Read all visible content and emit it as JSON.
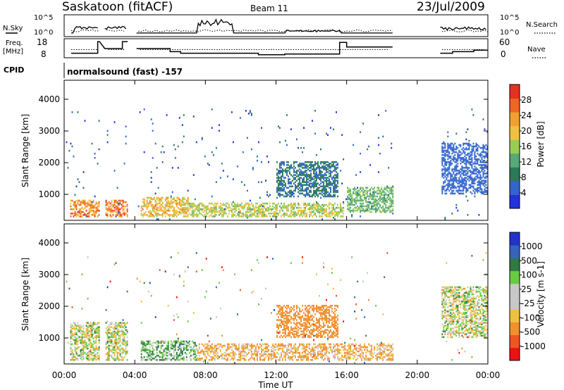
{
  "header": {
    "station": "Saskatoon (fitACF)",
    "beam": "Beam 11",
    "date": "23/Jul/2009"
  },
  "nsky_panel": {
    "left_label": "N.Sky",
    "right_label": "N.Search",
    "left_ticks": [
      "10^5",
      "10^0"
    ],
    "right_ticks": [
      "10^5",
      "10^0"
    ]
  },
  "freq_panel": {
    "left_label_1": "Freq.",
    "left_label_2": "[MHz]",
    "right_label": "Nave",
    "left_ticks": [
      "18",
      "8"
    ],
    "right_ticks": [
      "60",
      "0"
    ]
  },
  "cpid": {
    "label": "CPID",
    "program": "normalsound (fast) -157"
  },
  "colors": {
    "power_scale": [
      "#2233dd",
      "#3366cc",
      "#2a7a5a",
      "#55aa77",
      "#99cc55",
      "#f2c040",
      "#f0a030",
      "#ee6622",
      "#e83020"
    ],
    "velocity_scale": [
      "#ee1111",
      "#ee5522",
      "#f09030",
      "#f2c040",
      "#c8c8c8",
      "#c8c8c8",
      "#66cc44",
      "#2e7a44",
      "#3366bb",
      "#2233cc"
    ]
  },
  "chart_data": [
    {
      "type": "heatmap",
      "name": "power",
      "ylabel": "Slant Range [km]",
      "colorbar_label": "Power [dB]",
      "colorbar_ticks": [
        "28",
        "24",
        "20",
        "16",
        "12",
        "8",
        "4"
      ],
      "y_ticks": [
        "4000",
        "3000",
        "2000",
        "1000"
      ],
      "ylim": [
        180,
        4600
      ],
      "xlim_hours": [
        0,
        24
      ],
      "data_gaps_hours": [
        [
          2.0,
          2.3
        ],
        [
          3.6,
          4.1
        ],
        [
          18.6,
          21.3
        ]
      ],
      "dominant_features": [
        {
          "x_hours": [
            0.3,
            3.6
          ],
          "range_km": [
            250,
            800
          ],
          "power_db": 28
        },
        {
          "x_hours": [
            4.3,
            7.0
          ],
          "range_km": [
            250,
            900
          ],
          "power_db": 24
        },
        {
          "x_hours": [
            7.0,
            15.8
          ],
          "range_km": [
            250,
            700
          ],
          "power_db": 20
        },
        {
          "x_hours": [
            12.0,
            15.5
          ],
          "range_km": [
            900,
            2000
          ],
          "power_db": 10
        },
        {
          "x_hours": [
            16.0,
            18.6
          ],
          "range_km": [
            400,
            1200
          ],
          "power_db": 16
        },
        {
          "x_hours": [
            21.3,
            24.0
          ],
          "range_km": [
            1000,
            2600
          ],
          "power_db": 8
        }
      ]
    },
    {
      "type": "heatmap",
      "name": "velocity",
      "ylabel": "Slant Range [km]",
      "colorbar_label": "Velocity [m s-1]",
      "colorbar_ticks": [
        "1000",
        "500",
        "100",
        "25",
        "-25",
        "-100",
        "-500",
        "-1000"
      ],
      "y_ticks": [
        "4000",
        "3000",
        "2000",
        "1000"
      ],
      "ylim": [
        180,
        4600
      ],
      "xlim_hours": [
        0,
        24
      ],
      "x_ticks": [
        "00:00",
        "04:00",
        "08:00",
        "12:00",
        "16:00",
        "20:00",
        "00:00"
      ],
      "xlabel": "Time UT",
      "dominant_features": [
        {
          "x_hours": [
            0.3,
            4.0
          ],
          "range_km": [
            250,
            1500
          ],
          "velocity": 0
        },
        {
          "x_hours": [
            4.3,
            7.5
          ],
          "range_km": [
            250,
            900
          ],
          "velocity": 100
        },
        {
          "x_hours": [
            7.5,
            18.6
          ],
          "range_km": [
            250,
            800
          ],
          "velocity": -100
        },
        {
          "x_hours": [
            12.0,
            15.5
          ],
          "range_km": [
            1000,
            2000
          ],
          "velocity": -300
        },
        {
          "x_hours": [
            21.3,
            24.0
          ],
          "range_km": [
            1000,
            2600
          ],
          "velocity": 0
        }
      ]
    }
  ]
}
